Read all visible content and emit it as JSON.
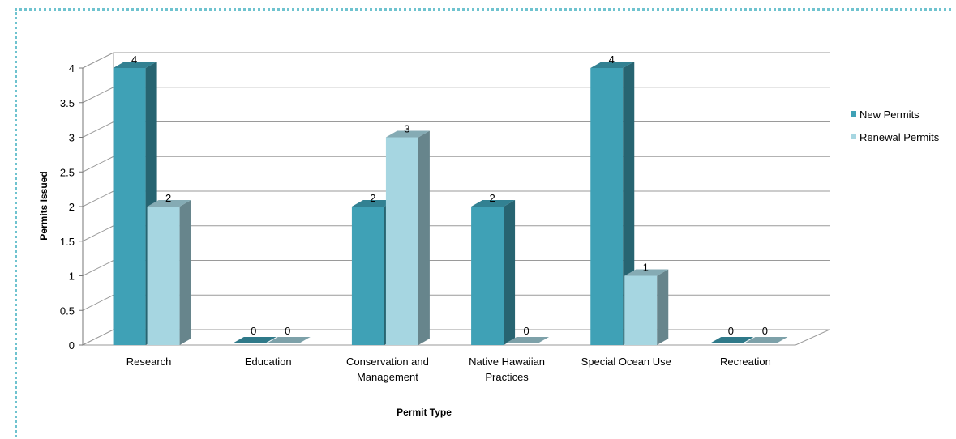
{
  "chart_data": {
    "type": "bar",
    "title": "",
    "xlabel": "Permit  Type",
    "ylabel": "Permits Issued",
    "categories": [
      [
        "Research"
      ],
      [
        "Education"
      ],
      [
        "Conservation and",
        "Management"
      ],
      [
        "Native Hawaiian",
        "Practices"
      ],
      [
        "Special Ocean Use"
      ],
      [
        "Recreation"
      ]
    ],
    "series": [
      {
        "name": "New Permits",
        "values": [
          4,
          0,
          2,
          2,
          4,
          0
        ],
        "color": "#3fa1b6"
      },
      {
        "name": "Renewal Permits",
        "values": [
          2,
          0,
          3,
          0,
          1,
          0
        ],
        "color": "#a6d6e1"
      }
    ],
    "ylim": [
      0,
      4
    ],
    "yticks": [
      "0",
      "0.5",
      "1",
      "1.5",
      "2",
      "2.5",
      "3",
      "3.5",
      "4"
    ],
    "grid": true,
    "legend_position": "right",
    "three_d": true
  }
}
